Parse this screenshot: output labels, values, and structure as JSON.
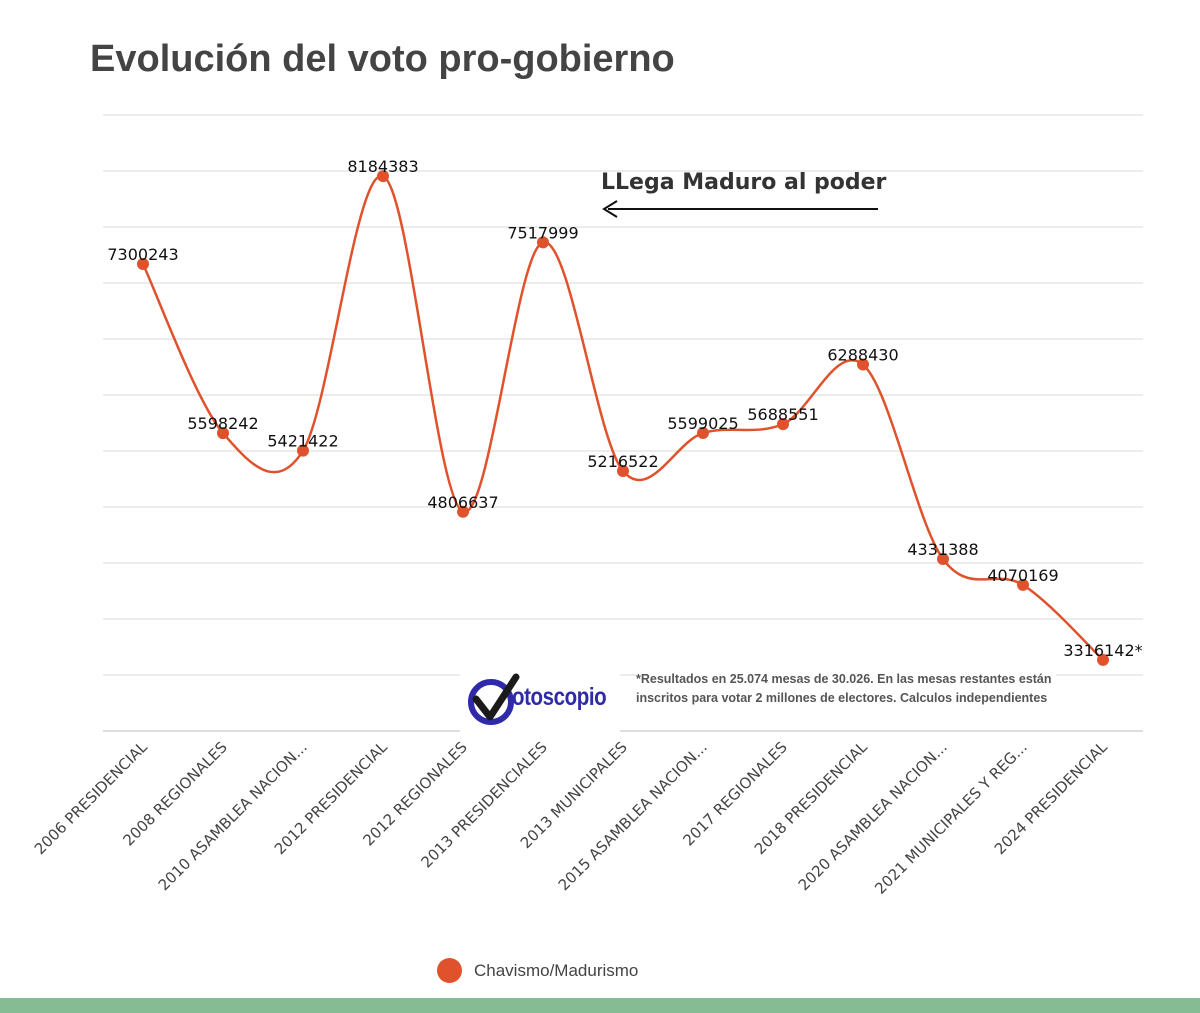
{
  "title": "Evolución del voto pro-gobierno",
  "annotation": {
    "text": "LLega Maduro al poder"
  },
  "note": "*Resultados en 25.074 mesas de 30.026. En las mesas restantes están inscritos para votar 2 millones de electores. Calculos independientes",
  "logo": {
    "text": "otoscopio"
  },
  "colors": {
    "series": "#e0522c",
    "grid": "#d9d9d9",
    "footer": "#86bc94",
    "logo": "#2e2aa8"
  },
  "chart_data": {
    "type": "line",
    "title": "Evolución del voto pro-gobierno",
    "xlabel": "",
    "ylabel": "",
    "ylim": [
      2600000,
      8800000
    ],
    "grid": true,
    "legend": "bottom",
    "categories": [
      "2006 PRESIDENCIAL",
      "2008 REGIONALES",
      "2010 ASAMBLEA NACION...",
      "2012 PRESIDENCIAL",
      "2012 REGIONALES",
      "2013 PRESIDENCIALES",
      "2013 MUNICIPALES",
      "2015 ASAMBLEA NACION...",
      "2017 REGIONALES",
      "2018 PRESIDENCIAL",
      "2020 ASAMBLEA NACION...",
      "2021 MUNICIPALES Y REG...",
      "2024 PRESIDENCIAL"
    ],
    "series": [
      {
        "name": "Chavismo/Madurismo",
        "values": [
          7300243,
          5598242,
          5421422,
          8184383,
          4806637,
          7517999,
          5216522,
          5599025,
          5688551,
          6288430,
          4331388,
          4070169,
          3316142
        ],
        "labels": [
          "7300243",
          "5598242",
          "5421422",
          "8184383",
          "4806637",
          "7517999",
          "5216522",
          "5599025",
          "5688551",
          "6288430",
          "4331388",
          "4070169",
          "3316142*"
        ]
      }
    ]
  }
}
